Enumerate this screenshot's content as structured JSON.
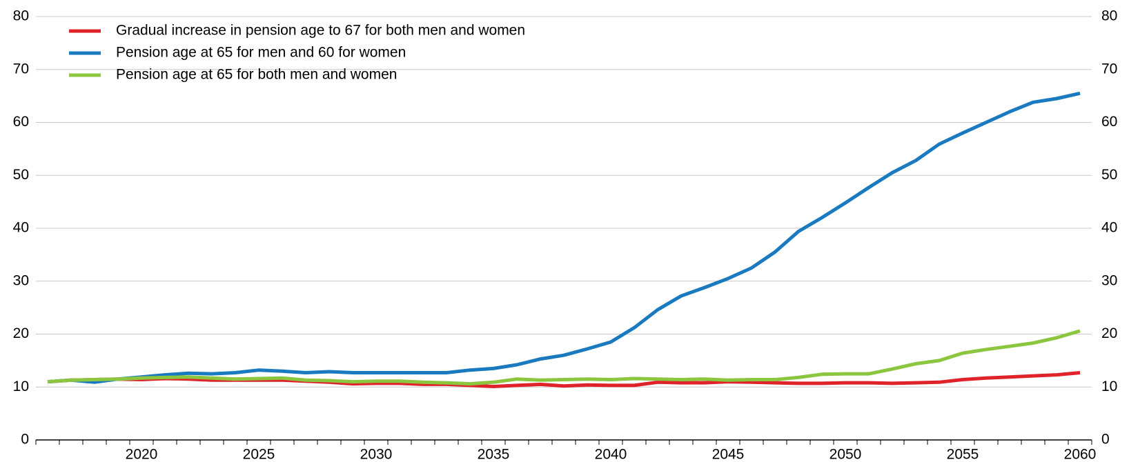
{
  "chart_data": {
    "type": "line",
    "x": [
      2016,
      2017,
      2018,
      2019,
      2020,
      2021,
      2022,
      2023,
      2024,
      2025,
      2026,
      2027,
      2028,
      2029,
      2030,
      2031,
      2032,
      2033,
      2034,
      2035,
      2036,
      2037,
      2038,
      2039,
      2040,
      2041,
      2042,
      2043,
      2044,
      2045,
      2046,
      2047,
      2048,
      2049,
      2050,
      2051,
      2052,
      2053,
      2054,
      2055,
      2056,
      2057,
      2058,
      2059,
      2060
    ],
    "series": [
      {
        "name": "Gradual increase in pension age to 67 for both men and women",
        "color": "#e0232b",
        "values": [
          11,
          11.3,
          11.4,
          11.5,
          11.4,
          11.6,
          11.5,
          11.3,
          11.3,
          11.3,
          11.3,
          11.1,
          10.9,
          10.6,
          10.7,
          10.7,
          10.5,
          10.5,
          10.3,
          10.1,
          10.3,
          10.5,
          10.2,
          10.4,
          10.3,
          10.3,
          10.9,
          10.8,
          10.8,
          11,
          10.9,
          10.8,
          10.7,
          10.7,
          10.8,
          10.8,
          10.7,
          10.8,
          10.9,
          11.4,
          11.7,
          11.9,
          12.1,
          12.3,
          12.7
        ]
      },
      {
        "name": "Pension age at 65 for men and 60 for women",
        "color": "#1a7abf",
        "values": [
          11,
          11.3,
          10.9,
          11.5,
          11.9,
          12.3,
          12.6,
          12.5,
          12.7,
          13.2,
          13,
          12.7,
          12.9,
          12.7,
          12.7,
          12.7,
          12.7,
          12.7,
          13.2,
          13.5,
          14.2,
          15.3,
          16,
          17.2,
          18.5,
          21.2,
          24.6,
          27.2,
          28.8,
          30.5,
          32.5,
          35.5,
          39.4,
          42,
          44.8,
          47.7,
          50.5,
          52.8,
          55.9,
          58,
          60,
          62,
          63.8,
          64.5,
          65.5
        ]
      },
      {
        "name": "Pension age at 65 for both men and women",
        "color": "#8cc63f",
        "values": [
          11,
          11.3,
          11.4,
          11.5,
          11.7,
          11.8,
          11.9,
          11.7,
          11.5,
          11.6,
          11.7,
          11.3,
          11.2,
          11,
          11.1,
          11.1,
          10.9,
          10.8,
          10.6,
          10.9,
          11.5,
          11.3,
          11.4,
          11.5,
          11.4,
          11.6,
          11.5,
          11.4,
          11.5,
          11.3,
          11.4,
          11.4,
          11.8,
          12.4,
          12.5,
          12.5,
          13.4,
          14.4,
          15,
          16.4,
          17.1,
          17.7,
          18.3,
          19.3,
          20.6
        ]
      }
    ],
    "xlim": [
      2015.5,
      2060.5
    ],
    "xticks": [
      2020,
      2025,
      2030,
      2035,
      2040,
      2045,
      2050,
      2055,
      2060
    ],
    "ylim": [
      0,
      80
    ],
    "yticks": [
      0,
      10,
      20,
      30,
      40,
      50,
      60,
      70,
      80
    ],
    "y2lim": [
      0,
      80
    ],
    "y2ticks": [
      0,
      10,
      20,
      30,
      40,
      50,
      60,
      70,
      80
    ],
    "grid": true,
    "legend": "top-left"
  }
}
